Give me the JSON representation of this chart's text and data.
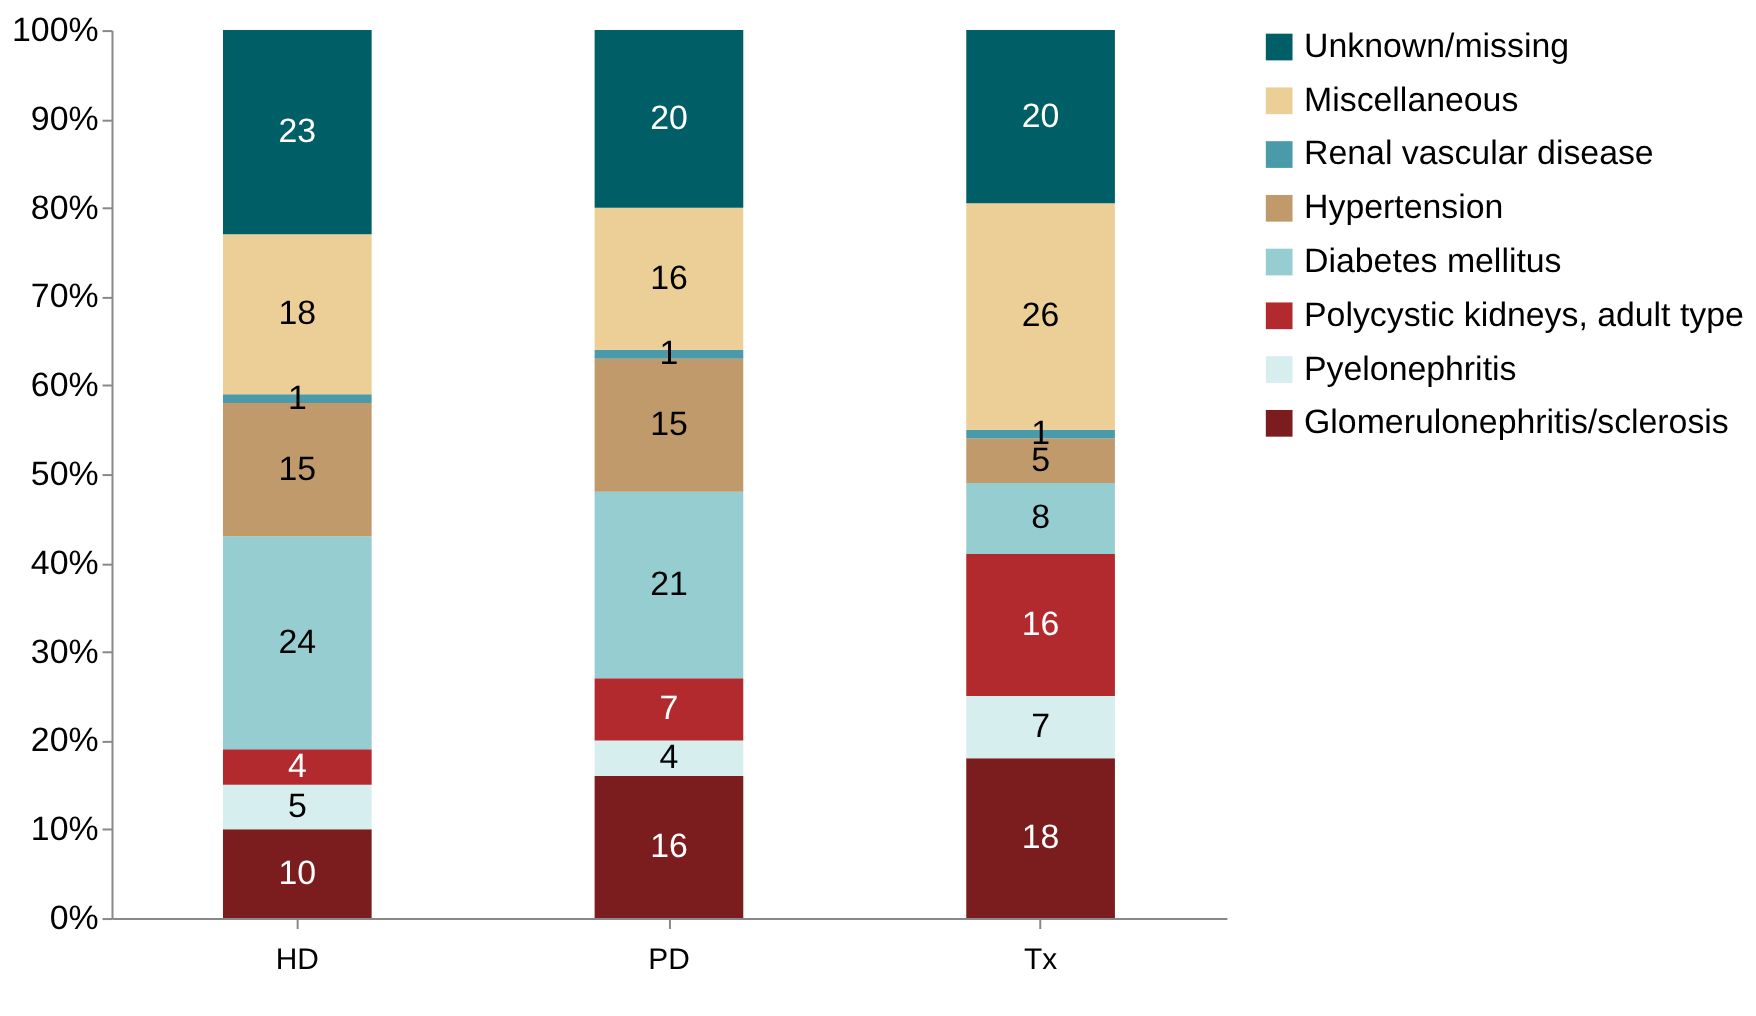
{
  "chart_data": {
    "type": "bar",
    "stacked": true,
    "categories": [
      "HD",
      "PD",
      "Tx"
    ],
    "series": [
      {
        "name": "Glomerulonephritis/sclerosis",
        "color": "#7b1c1e",
        "values": [
          10,
          16,
          18
        ],
        "value_labels": [
          "10",
          "16",
          "18"
        ]
      },
      {
        "name": "Pyelonephritis",
        "color": "#d6eeee",
        "values": [
          5,
          4,
          7
        ],
        "value_labels": [
          "5",
          "4",
          "7"
        ]
      },
      {
        "name": "Polycystic kidneys, adult type",
        "color": "#b22a2e",
        "values": [
          4,
          7,
          16
        ],
        "value_labels": [
          "4",
          "7",
          "16"
        ]
      },
      {
        "name": "Diabetes mellitus",
        "color": "#96cdd0",
        "values": [
          24,
          21,
          8
        ],
        "value_labels": [
          "24",
          "21",
          "8"
        ]
      },
      {
        "name": "Hypertension",
        "color": "#c19a6b",
        "values": [
          15,
          15,
          5
        ],
        "value_labels": [
          "15",
          "15",
          "5"
        ]
      },
      {
        "name": "Renal vascular disease",
        "color": "#4a9aaa",
        "values": [
          1,
          1,
          1
        ],
        "value_labels": [
          "1",
          "1",
          "1"
        ]
      },
      {
        "name": "Miscellaneous",
        "color": "#ebcf97",
        "values": [
          18,
          16,
          25.5
        ],
        "value_labels": [
          "18",
          "16",
          "26"
        ]
      },
      {
        "name": "Unknown/missing",
        "color": "#005f66",
        "values": [
          23,
          20,
          19.5
        ],
        "value_labels": [
          "23",
          "20",
          "20"
        ]
      }
    ],
    "ylim": [
      0,
      100
    ],
    "yticks": [
      {
        "value": 0,
        "label": "0%"
      },
      {
        "value": 10,
        "label": "10%"
      },
      {
        "value": 20,
        "label": "20%"
      },
      {
        "value": 30,
        "label": "30%"
      },
      {
        "value": 40,
        "label": "40%"
      },
      {
        "value": 50,
        "label": "50%"
      },
      {
        "value": 60,
        "label": "60%"
      },
      {
        "value": 70,
        "label": "70%"
      },
      {
        "value": 80,
        "label": "80%"
      },
      {
        "value": 90,
        "label": "90%"
      },
      {
        "value": 100,
        "label": "100%"
      }
    ],
    "grid": false,
    "legend": "right"
  }
}
